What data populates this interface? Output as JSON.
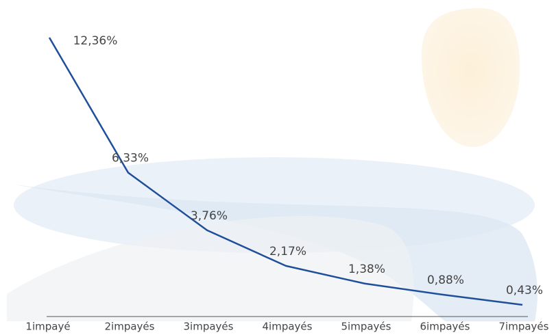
{
  "chart_data": {
    "type": "line",
    "categories": [
      "1impayé",
      "2impayés",
      "3impayés",
      "4impayés",
      "5impayés",
      "6impayés",
      "7impayés"
    ],
    "series": [
      {
        "name": null,
        "color": "#1f4e9a",
        "values": [
          12.36,
          6.33,
          3.76,
          2.17,
          1.38,
          0.88,
          0.43
        ],
        "value_labels": [
          "12,36%",
          "6,33%",
          "3,76%",
          "2,17%",
          "1,38%",
          "0,88%",
          "0,43%"
        ]
      }
    ],
    "ylim": [
      0,
      13
    ]
  }
}
